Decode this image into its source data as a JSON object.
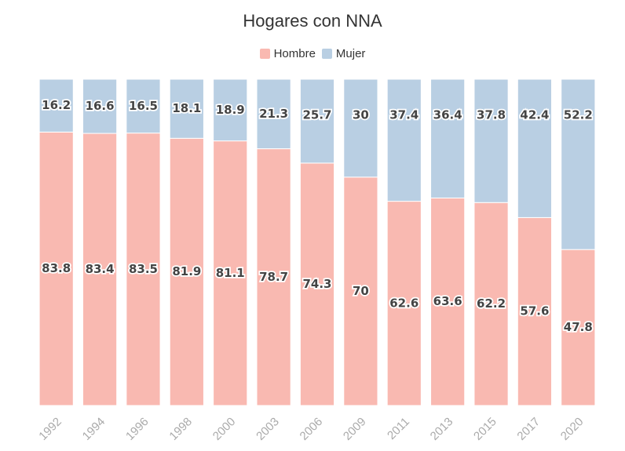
{
  "chart_data": {
    "type": "bar",
    "stacked": true,
    "title": "Hogares con NNA",
    "categories": [
      "1992",
      "1994",
      "1996",
      "1998",
      "2000",
      "2003",
      "2006",
      "2009",
      "2011",
      "2013",
      "2015",
      "2017",
      "2020"
    ],
    "series": [
      {
        "name": "Hombre",
        "color": "#f9b9b1",
        "values": [
          83.8,
          83.4,
          83.5,
          81.9,
          81.1,
          78.7,
          74.3,
          70,
          62.6,
          63.6,
          62.2,
          57.6,
          47.8
        ]
      },
      {
        "name": "Mujer",
        "color": "#b9cfe3",
        "values": [
          16.2,
          16.6,
          16.5,
          18.1,
          18.9,
          21.3,
          25.7,
          30,
          37.4,
          36.4,
          37.8,
          42.4,
          52.2
        ]
      }
    ],
    "ylim": [
      0,
      100
    ],
    "xlabel": "",
    "ylabel": "",
    "legend_position": "top-center",
    "grid": false
  }
}
